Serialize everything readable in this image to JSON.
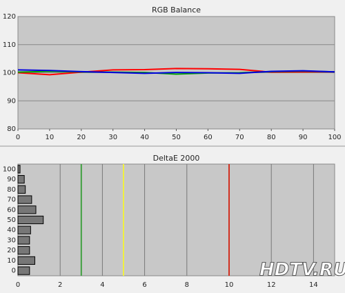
{
  "chart_data": [
    {
      "type": "line",
      "title": "RGB Balance",
      "x": [
        0,
        10,
        20,
        30,
        40,
        50,
        60,
        70,
        80,
        90,
        100
      ],
      "series": [
        {
          "color": "#ff0000",
          "values": [
            100.0,
            99.3,
            100.2,
            101.0,
            101.1,
            101.5,
            101.4,
            101.2,
            100.2,
            100.3,
            100.3
          ]
        },
        {
          "color": "#00a000",
          "values": [
            100.2,
            100.5,
            100.3,
            100.2,
            100.1,
            99.5,
            99.9,
            100.0,
            100.4,
            100.6,
            100.3
          ]
        },
        {
          "color": "#0000e0",
          "values": [
            101.0,
            100.8,
            100.4,
            100.1,
            99.8,
            100.1,
            100.0,
            99.8,
            100.5,
            100.7,
            100.3
          ]
        }
      ],
      "xlim": [
        0,
        100
      ],
      "xticks": [
        0,
        10,
        20,
        30,
        40,
        50,
        60,
        70,
        80,
        90,
        100
      ],
      "ylim": [
        80,
        120
      ],
      "yticks": [
        80,
        90,
        100,
        110,
        120
      ],
      "grid": "y"
    },
    {
      "type": "hbar",
      "title": "DeltaE 2000",
      "categories": [
        0,
        10,
        20,
        30,
        40,
        50,
        60,
        70,
        80,
        90,
        100
      ],
      "values": [
        0.55,
        0.8,
        0.55,
        0.55,
        0.6,
        1.2,
        0.85,
        0.65,
        0.35,
        0.3,
        0.1
      ],
      "color": "#777777",
      "xlim": [
        0,
        15
      ],
      "xticks": [
        0,
        2,
        4,
        6,
        8,
        10,
        12,
        14
      ],
      "grid": "x",
      "reference_lines": [
        {
          "value": 3,
          "color": "#40a040"
        },
        {
          "value": 5,
          "color": "#f0f040"
        },
        {
          "value": 10,
          "color": "#d03020"
        }
      ]
    }
  ],
  "watermark": "HDTV.RU"
}
